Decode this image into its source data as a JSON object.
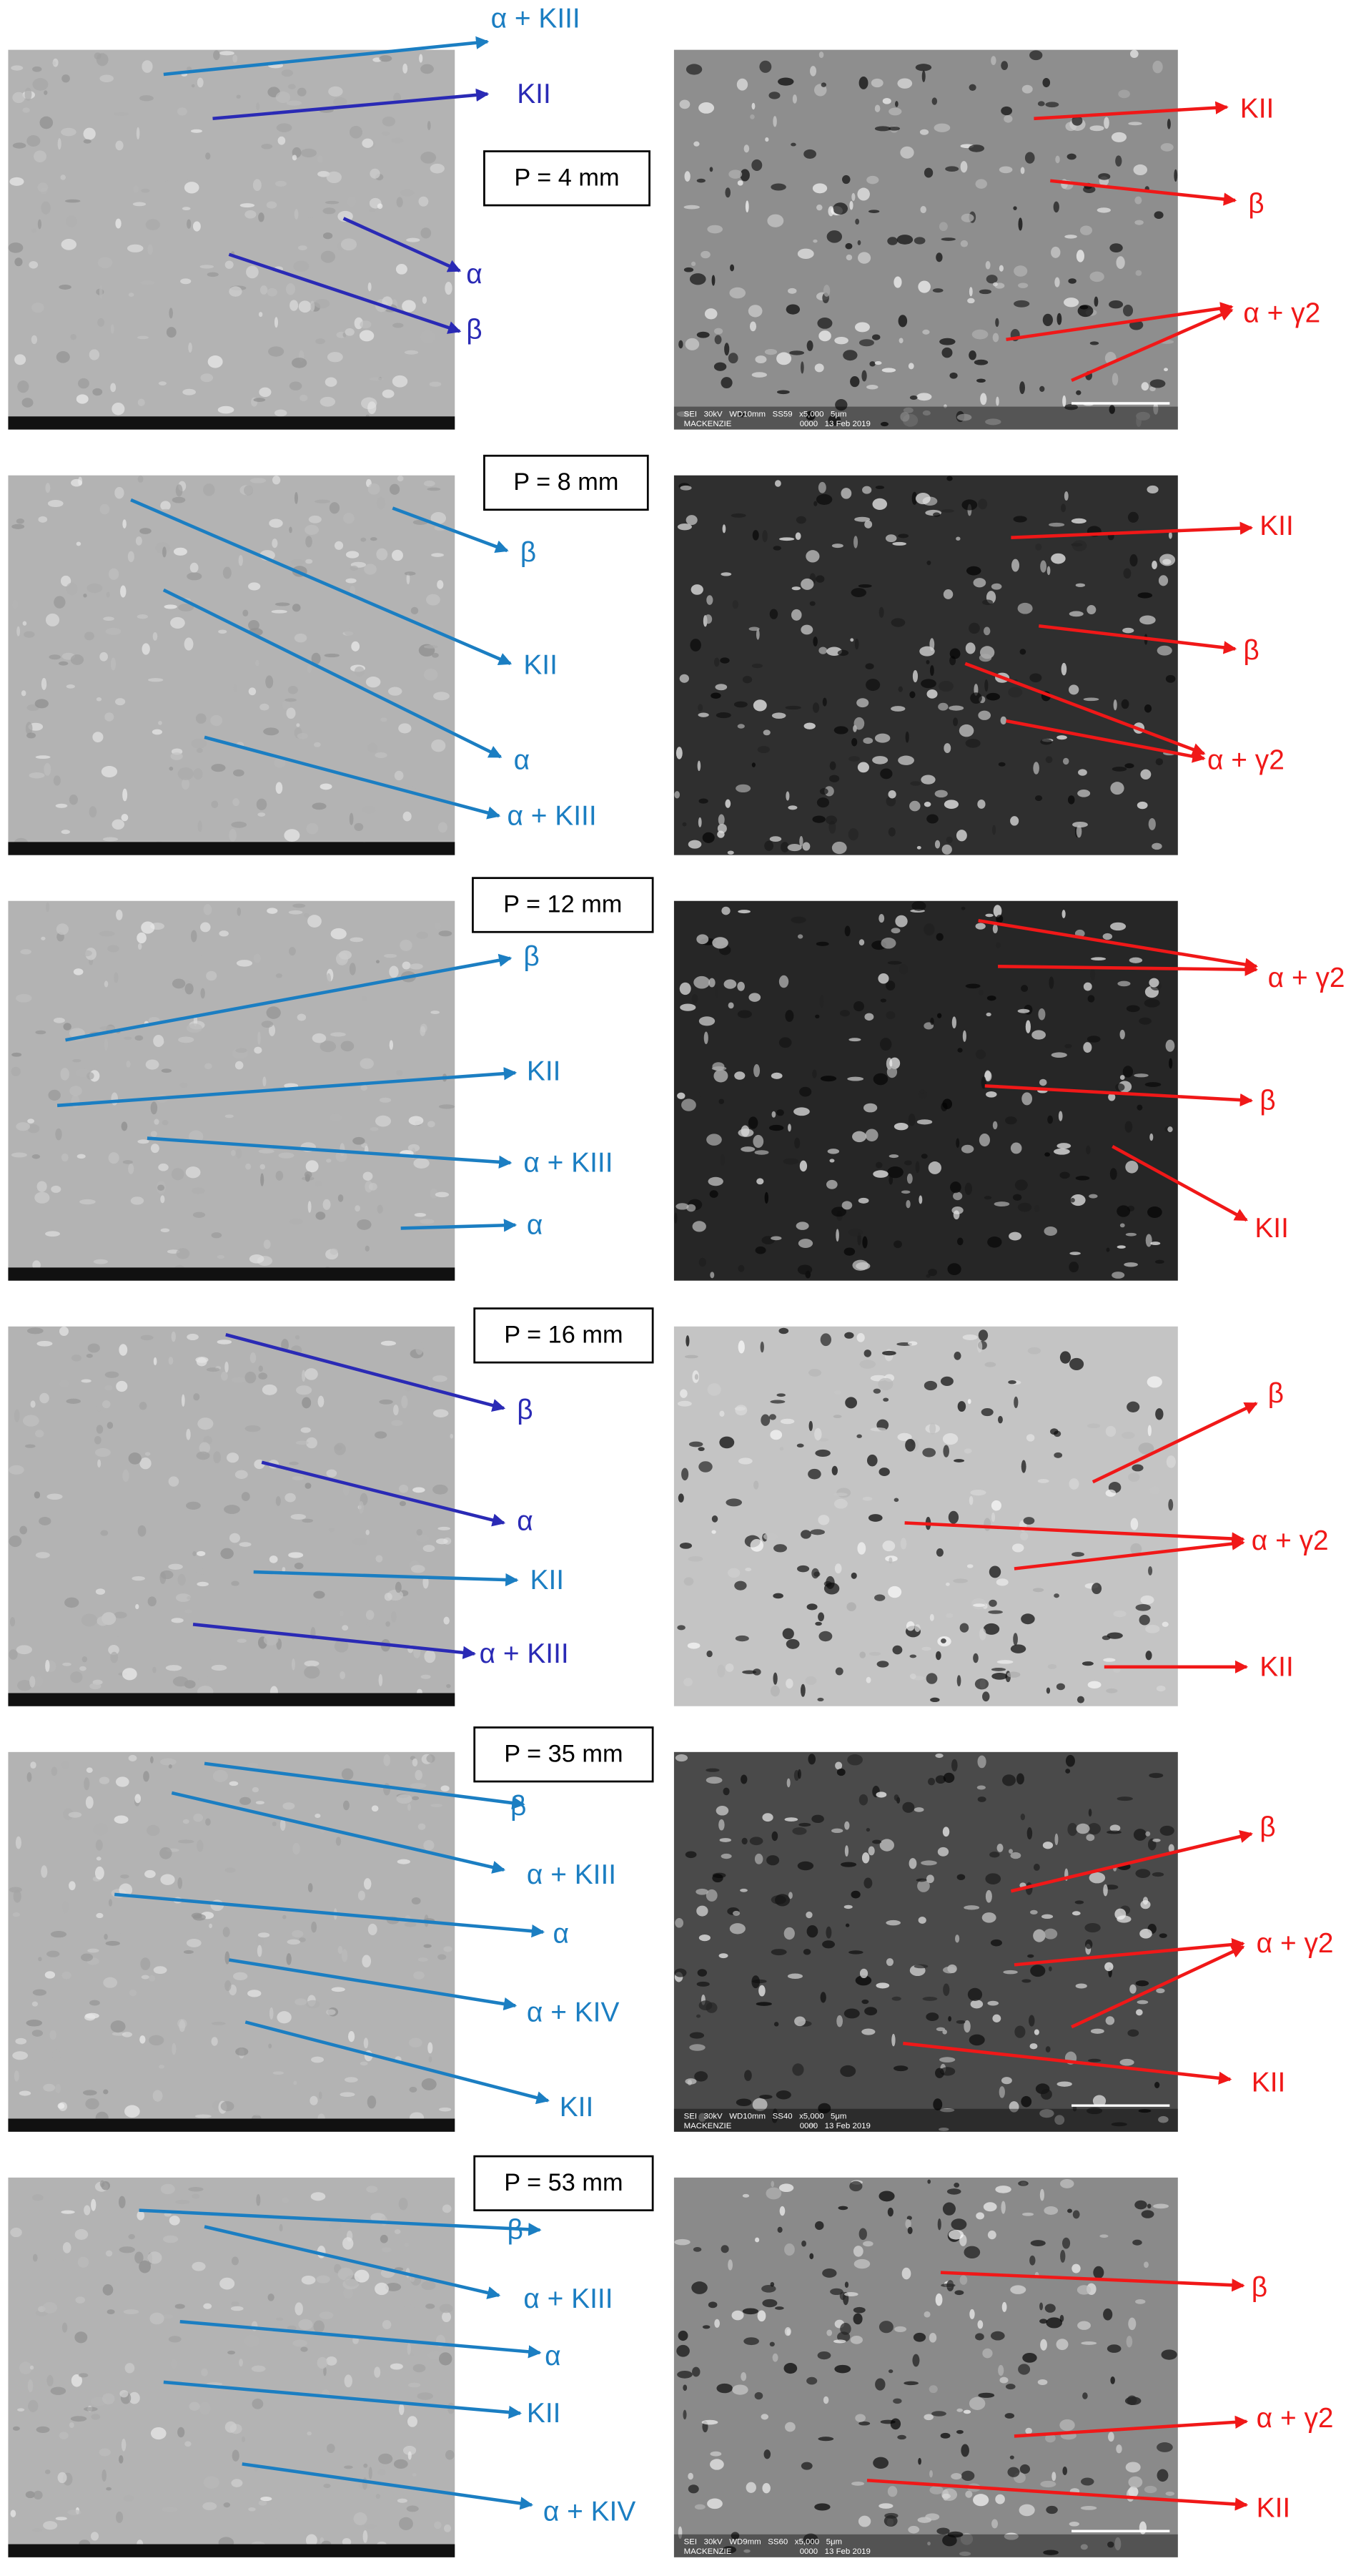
{
  "panels": [
    {
      "position": "P = 4 mm",
      "left_labels": [
        "α + KIII",
        "KII",
        "α",
        "β"
      ],
      "right_labels": [
        "KII",
        "β",
        "α + γ2"
      ],
      "right_footer": [
        "SEI   30kV   WD10mm   SS59   x5,000   5μm",
        "MACKENZIE                              0000   13 Feb 2019"
      ]
    },
    {
      "position": "P = 8 mm",
      "left_labels": [
        "β",
        "KII",
        "α",
        "α + KIII"
      ],
      "right_labels": [
        "KII",
        "β",
        "α + γ2"
      ]
    },
    {
      "position": "P = 12 mm",
      "left_labels": [
        "β",
        "KII",
        "α + KIII",
        "α"
      ],
      "right_labels": [
        "α + γ2",
        "β",
        "KII"
      ]
    },
    {
      "position": "P = 16 mm",
      "left_labels": [
        "β",
        "α",
        "KII",
        "α + KIII"
      ],
      "right_labels": [
        "β",
        "α + γ2",
        "KII"
      ]
    },
    {
      "position": "P = 35 mm",
      "left_labels": [
        "β",
        "α + KIII",
        "α",
        "α + KIV",
        "KII"
      ],
      "right_labels": [
        "β",
        "α + γ2",
        "KII"
      ],
      "right_footer": [
        "SEI   30kV   WD10mm   SS40   x5,000   5μm",
        "MACKENZIE                              0000   13 Feb 2019"
      ]
    },
    {
      "position": "P = 53 mm",
      "left_labels": [
        "β",
        "α + KIII",
        "α",
        "KII",
        "α + KIV"
      ],
      "right_labels": [
        "β",
        "α + γ2",
        "KII"
      ],
      "right_footer": [
        "SEI   30kV   WD9mm   SS60   x5,000   5μm",
        "MACKENZIE                              0000   13 Feb 2019"
      ]
    }
  ]
}
